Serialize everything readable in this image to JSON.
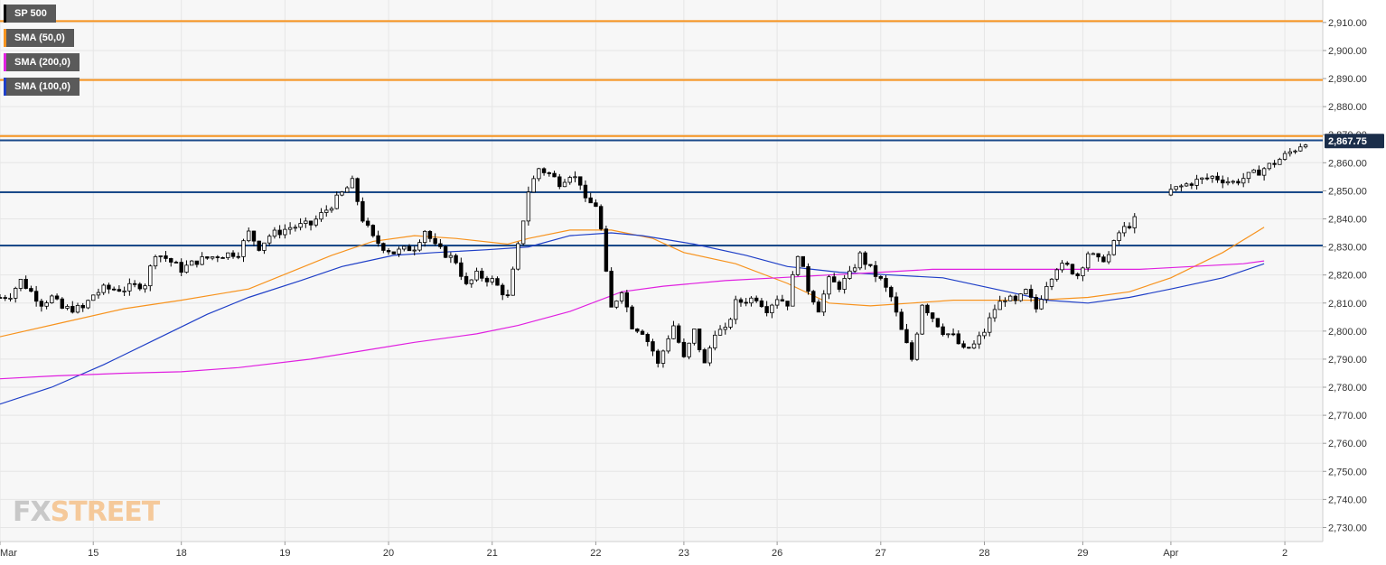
{
  "legend": [
    {
      "label": "SP 500",
      "color": "#000000"
    },
    {
      "label": "SMA (50,0)",
      "color": "#f7931e"
    },
    {
      "label": "SMA (200,0)",
      "color": "#e020e0"
    },
    {
      "label": "SMA (100,0)",
      "color": "#1f3fc7"
    }
  ],
  "logo": {
    "fx": "FX",
    "street": "STREET"
  },
  "current_price": {
    "value": 2867.75,
    "label": "2,867.75"
  },
  "chart_data": {
    "type": "candlestick",
    "title": "",
    "xlabel": "",
    "ylabel": "",
    "ylim": [
      2725,
      2918
    ],
    "grid": true,
    "y_ticks": [
      "2,730.00",
      "2,740.00",
      "2,750.00",
      "2,760.00",
      "2,770.00",
      "2,780.00",
      "2,790.00",
      "2,800.00",
      "2,810.00",
      "2,820.00",
      "2,830.00",
      "2,840.00",
      "2,850.00",
      "2,860.00",
      "2,870.00",
      "2,880.00",
      "2,890.00",
      "2,900.00",
      "2,910.00"
    ],
    "y_tick_values": [
      2730,
      2740,
      2750,
      2760,
      2770,
      2780,
      2790,
      2800,
      2810,
      2820,
      2830,
      2840,
      2850,
      2860,
      2870,
      2880,
      2890,
      2900,
      2910
    ],
    "x_ticks": [
      {
        "label": "Mar",
        "t": 0
      },
      {
        "label": "15",
        "t": 0.9
      },
      {
        "label": "18",
        "t": 1.75
      },
      {
        "label": "19",
        "t": 2.75
      },
      {
        "label": "20",
        "t": 3.75
      },
      {
        "label": "21",
        "t": 4.75
      },
      {
        "label": "22",
        "t": 5.75
      },
      {
        "label": "23",
        "t": 6.6
      },
      {
        "label": "26",
        "t": 7.5
      },
      {
        "label": "27",
        "t": 8.5
      },
      {
        "label": "28",
        "t": 9.5
      },
      {
        "label": "29",
        "t": 10.45
      },
      {
        "label": "Apr",
        "t": 11.3
      },
      {
        "label": "2",
        "t": 12.4
      }
    ],
    "horizontal_levels": [
      {
        "value": 2910.5,
        "color": "#f7931e"
      },
      {
        "value": 2889.5,
        "color": "#f7931e"
      },
      {
        "value": 2869.5,
        "color": "#f7931e"
      },
      {
        "value": 2868.0,
        "color": "#1a4a8a"
      },
      {
        "value": 2849.5,
        "color": "#1a4a8a"
      },
      {
        "value": 2830.5,
        "color": "#1a4a8a"
      }
    ],
    "series": [
      {
        "name": "SP 500",
        "type": "candlestick",
        "close_path": [
          [
            0,
            2812
          ],
          [
            0.1,
            2813
          ],
          [
            0.2,
            2818
          ],
          [
            0.3,
            2814
          ],
          [
            0.4,
            2810
          ],
          [
            0.5,
            2812
          ],
          [
            0.6,
            2808
          ],
          [
            0.8,
            2808
          ],
          [
            0.9,
            2813
          ],
          [
            1.0,
            2815
          ],
          [
            1.2,
            2815
          ],
          [
            1.4,
            2817
          ],
          [
            1.5,
            2828
          ],
          [
            1.6,
            2826
          ],
          [
            1.75,
            2822
          ],
          [
            1.9,
            2825
          ],
          [
            2.1,
            2827
          ],
          [
            2.3,
            2828
          ],
          [
            2.4,
            2835
          ],
          [
            2.5,
            2830
          ],
          [
            2.6,
            2834
          ],
          [
            2.8,
            2837
          ],
          [
            3.0,
            2838
          ],
          [
            3.2,
            2845
          ],
          [
            3.4,
            2853
          ],
          [
            3.5,
            2840
          ],
          [
            3.6,
            2833
          ],
          [
            3.7,
            2830
          ],
          [
            3.8,
            2828
          ],
          [
            4.0,
            2830
          ],
          [
            4.1,
            2836
          ],
          [
            4.2,
            2830
          ],
          [
            4.4,
            2825
          ],
          [
            4.5,
            2816
          ],
          [
            4.6,
            2820
          ],
          [
            4.75,
            2818
          ],
          [
            4.9,
            2812
          ],
          [
            5.0,
            2830
          ],
          [
            5.1,
            2850
          ],
          [
            5.2,
            2858
          ],
          [
            5.3,
            2856
          ],
          [
            5.4,
            2853
          ],
          [
            5.5,
            2856
          ],
          [
            5.6,
            2853
          ],
          [
            5.65,
            2846
          ],
          [
            5.75,
            2845
          ],
          [
            5.8,
            2836
          ],
          [
            5.85,
            2820
          ],
          [
            5.9,
            2808
          ],
          [
            6.0,
            2815
          ],
          [
            6.1,
            2802
          ],
          [
            6.2,
            2800
          ],
          [
            6.3,
            2793
          ],
          [
            6.35,
            2788
          ],
          [
            6.45,
            2798
          ],
          [
            6.5,
            2802
          ],
          [
            6.6,
            2790
          ],
          [
            6.7,
            2800
          ],
          [
            6.8,
            2788
          ],
          [
            6.9,
            2800
          ],
          [
            7.0,
            2800
          ],
          [
            7.1,
            2810
          ],
          [
            7.3,
            2812
          ],
          [
            7.4,
            2808
          ],
          [
            7.5,
            2812
          ],
          [
            7.6,
            2810
          ],
          [
            7.7,
            2828
          ],
          [
            7.8,
            2815
          ],
          [
            7.9,
            2808
          ],
          [
            8.0,
            2818
          ],
          [
            8.1,
            2816
          ],
          [
            8.2,
            2820
          ],
          [
            8.3,
            2827
          ],
          [
            8.4,
            2822
          ],
          [
            8.5,
            2818
          ],
          [
            8.6,
            2812
          ],
          [
            8.7,
            2800
          ],
          [
            8.8,
            2790
          ],
          [
            8.9,
            2810
          ],
          [
            9.0,
            2805
          ],
          [
            9.1,
            2800
          ],
          [
            9.2,
            2798
          ],
          [
            9.3,
            2793
          ],
          [
            9.4,
            2795
          ],
          [
            9.5,
            2800
          ],
          [
            9.6,
            2808
          ],
          [
            9.7,
            2812
          ],
          [
            9.8,
            2810
          ],
          [
            9.9,
            2814
          ],
          [
            10.0,
            2808
          ],
          [
            10.1,
            2817
          ],
          [
            10.2,
            2823
          ],
          [
            10.3,
            2823
          ],
          [
            10.4,
            2820
          ],
          [
            10.5,
            2828
          ],
          [
            10.6,
            2825
          ],
          [
            10.7,
            2827
          ],
          [
            10.8,
            2835
          ],
          [
            11.3,
            2850
          ],
          [
            11.5,
            2853
          ],
          [
            11.7,
            2855
          ],
          [
            11.9,
            2853
          ],
          [
            12.1,
            2856
          ],
          [
            12.3,
            2860
          ],
          [
            12.5,
            2865
          ],
          [
            12.6,
            2867.75
          ]
        ]
      },
      {
        "name": "SMA (50,0)",
        "color": "#f7931e",
        "points": [
          [
            0,
            2798
          ],
          [
            0.6,
            2803
          ],
          [
            1.2,
            2808
          ],
          [
            1.75,
            2811
          ],
          [
            2.4,
            2815
          ],
          [
            2.8,
            2821
          ],
          [
            3.2,
            2827
          ],
          [
            3.6,
            2832
          ],
          [
            4.0,
            2834
          ],
          [
            4.4,
            2833
          ],
          [
            4.9,
            2831
          ],
          [
            5.1,
            2833
          ],
          [
            5.5,
            2836
          ],
          [
            5.9,
            2836
          ],
          [
            6.3,
            2833
          ],
          [
            6.6,
            2828
          ],
          [
            7.1,
            2824
          ],
          [
            7.6,
            2817
          ],
          [
            8.0,
            2810
          ],
          [
            8.4,
            2809
          ],
          [
            8.8,
            2810
          ],
          [
            9.2,
            2811
          ],
          [
            9.6,
            2811
          ],
          [
            10.0,
            2811
          ],
          [
            10.5,
            2812
          ],
          [
            10.9,
            2814
          ],
          [
            11.3,
            2819
          ],
          [
            11.8,
            2828
          ],
          [
            12.2,
            2837
          ]
        ]
      },
      {
        "name": "SMA (100,0)",
        "color": "#1f3fc7",
        "points": [
          [
            0,
            2774
          ],
          [
            0.5,
            2780
          ],
          [
            1.0,
            2788
          ],
          [
            1.5,
            2797
          ],
          [
            2.0,
            2806
          ],
          [
            2.4,
            2812
          ],
          [
            2.9,
            2818
          ],
          [
            3.3,
            2823
          ],
          [
            3.8,
            2827
          ],
          [
            4.2,
            2828
          ],
          [
            4.7,
            2829
          ],
          [
            5.1,
            2830
          ],
          [
            5.5,
            2834
          ],
          [
            5.9,
            2835
          ],
          [
            6.2,
            2834
          ],
          [
            6.7,
            2831
          ],
          [
            7.2,
            2827
          ],
          [
            7.6,
            2823
          ],
          [
            8.1,
            2821
          ],
          [
            8.6,
            2820
          ],
          [
            9.1,
            2819
          ],
          [
            9.6,
            2815
          ],
          [
            10.1,
            2811
          ],
          [
            10.5,
            2810
          ],
          [
            10.9,
            2812
          ],
          [
            11.3,
            2815
          ],
          [
            11.8,
            2819
          ],
          [
            12.2,
            2824
          ]
        ]
      },
      {
        "name": "SMA (200,0)",
        "color": "#e020e0",
        "points": [
          [
            0,
            2783
          ],
          [
            0.5,
            2784
          ],
          [
            1.2,
            2785
          ],
          [
            1.75,
            2785.5
          ],
          [
            2.3,
            2787
          ],
          [
            3.0,
            2790
          ],
          [
            3.5,
            2793
          ],
          [
            4.0,
            2796
          ],
          [
            4.6,
            2799
          ],
          [
            5.0,
            2802
          ],
          [
            5.5,
            2807
          ],
          [
            6.0,
            2814
          ],
          [
            6.4,
            2816
          ],
          [
            7.0,
            2818
          ],
          [
            7.5,
            2819
          ],
          [
            8.0,
            2820
          ],
          [
            8.5,
            2821
          ],
          [
            9.0,
            2822
          ],
          [
            9.5,
            2822
          ],
          [
            10.0,
            2822
          ],
          [
            10.5,
            2822
          ],
          [
            11.0,
            2822
          ],
          [
            11.5,
            2823
          ],
          [
            12.0,
            2824
          ],
          [
            12.2,
            2825
          ]
        ]
      }
    ]
  }
}
